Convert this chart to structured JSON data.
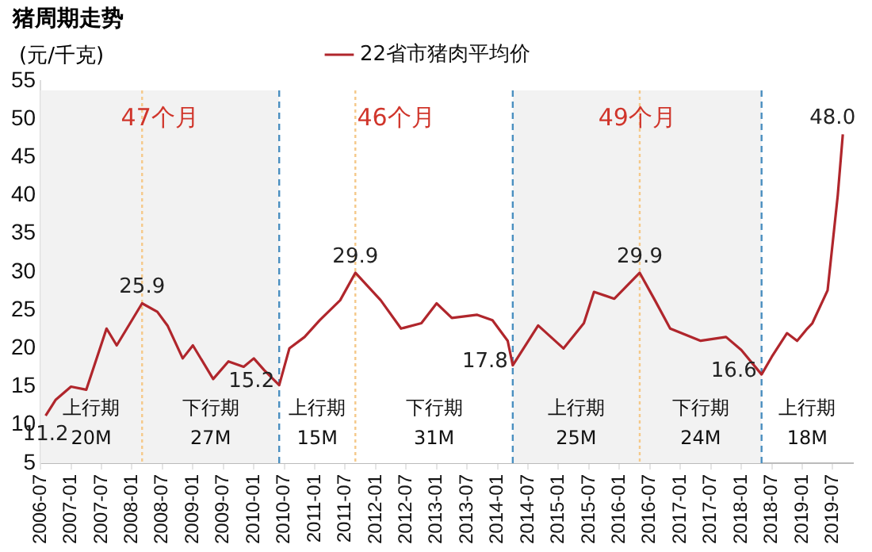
{
  "chart_data": {
    "type": "line",
    "title": "猪周期走势",
    "ylabel": "(元/千克)",
    "x": [
      "2006-08",
      "2006-10",
      "2007-01",
      "2007-04",
      "2007-08",
      "2007-10",
      "2008-03",
      "2008-06",
      "2008-08",
      "2008-11",
      "2009-01",
      "2009-05",
      "2009-08",
      "2009-11",
      "2010-01",
      "2010-03",
      "2010-06",
      "2010-08",
      "2010-11",
      "2011-02",
      "2011-06",
      "2011-09",
      "2012-02",
      "2012-06",
      "2012-10",
      "2013-01",
      "2013-04",
      "2013-09",
      "2013-12",
      "2014-03",
      "2014-04",
      "2014-09",
      "2015-02",
      "2015-06",
      "2015-08",
      "2015-12",
      "2016-05",
      "2016-08",
      "2016-11",
      "2017-05",
      "2017-10",
      "2018-01",
      "2018-05",
      "2018-07",
      "2018-10",
      "2018-12",
      "2019-02",
      "2019-03",
      "2019-06",
      "2019-08",
      "2019-09"
    ],
    "series": [
      {
        "name": "22省市猪肉平均价",
        "color": "#b0262c",
        "values": [
          11.2,
          13.3,
          15,
          14.6,
          22.6,
          20.4,
          25.9,
          24.8,
          23,
          18.7,
          20.4,
          16,
          18.3,
          17.6,
          18.7,
          17.2,
          15.2,
          20,
          21.5,
          23.7,
          26.3,
          29.9,
          26.3,
          22.6,
          23.3,
          25.9,
          24,
          24.4,
          23.7,
          21,
          17.8,
          23,
          20,
          23.3,
          27.4,
          26.5,
          29.9,
          26.3,
          22.6,
          21,
          21.5,
          19.8,
          16.6,
          18.9,
          22,
          21,
          22.6,
          23.3,
          27.6,
          40,
          48.0
        ],
        "value_labels": [
          "11.2",
          null,
          null,
          null,
          null,
          null,
          "25.9",
          null,
          null,
          null,
          null,
          null,
          null,
          null,
          null,
          null,
          "15.2",
          null,
          null,
          null,
          null,
          "29.9",
          null,
          null,
          null,
          null,
          null,
          null,
          null,
          null,
          "17.8",
          null,
          null,
          null,
          null,
          null,
          "29.9",
          null,
          null,
          null,
          null,
          null,
          "16.6",
          null,
          null,
          null,
          null,
          null,
          null,
          null,
          "48.0"
        ]
      }
    ],
    "xlim": [
      "2006-07",
      "2019-11"
    ],
    "xticks": [
      "2006-07",
      "2007-01",
      "2007-07",
      "2008-01",
      "2008-07",
      "2009-01",
      "2009-07",
      "2010-01",
      "2010-07",
      "2011-01",
      "2011-07",
      "2012-01",
      "2012-07",
      "2013-01",
      "2013-07",
      "2014-01",
      "2014-07",
      "2015-01",
      "2015-07",
      "2016-01",
      "2016-07",
      "2017-01",
      "2017-07",
      "2018-01",
      "2018-07",
      "2019-01",
      "2019-07"
    ],
    "ylim": [
      5,
      55
    ],
    "yticks": [
      5,
      10,
      15,
      20,
      25,
      30,
      35,
      40,
      45,
      50,
      55
    ],
    "grid": false,
    "legend": "top",
    "marker": "none",
    "line_style": "solid",
    "bands": [
      {
        "axis": "x",
        "from": "2006-07",
        "to": "2010-06",
        "label": "47个月",
        "color": "#f2f2f2"
      },
      {
        "axis": "x",
        "from": "2010-06",
        "to": "2014-04",
        "label": "46个月",
        "color": "#ffffff"
      },
      {
        "axis": "x",
        "from": "2014-04",
        "to": "2018-05",
        "label": "49个月",
        "color": "#f2f2f2"
      }
    ],
    "ref_lines": [
      {
        "axis": "x",
        "value": "2010-06",
        "color": "#4a8fc0",
        "line_style": "dashed"
      },
      {
        "axis": "x",
        "value": "2014-04",
        "color": "#4a8fc0",
        "line_style": "dashed"
      },
      {
        "axis": "x",
        "value": "2018-05",
        "color": "#4a8fc0",
        "line_style": "dashed"
      },
      {
        "axis": "x",
        "value": "2008-03",
        "color": "#f5c98a",
        "line_style": "dotted"
      },
      {
        "axis": "x",
        "value": "2011-09",
        "color": "#f5c98a",
        "line_style": "dotted"
      },
      {
        "axis": "x",
        "value": "2016-05",
        "color": "#f5c98a",
        "line_style": "dotted"
      }
    ],
    "annotations": [
      "上行期",
      "20M",
      "下行期",
      "27M",
      "上行期",
      "15M",
      "下行期",
      "31M",
      "上行期",
      "25M",
      "下行期",
      "24M",
      "上行期",
      "18M"
    ]
  }
}
